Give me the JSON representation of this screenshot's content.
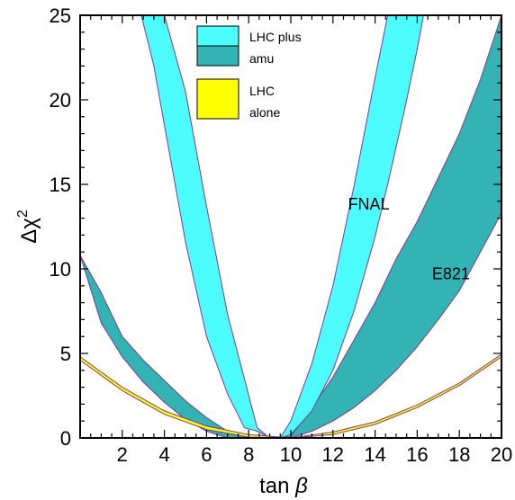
{
  "chart_data": {
    "type": "area",
    "xlabel_main": "tan",
    "xlabel_symbol": "β",
    "ylabel_main": "Δχ",
    "ylabel_sup": "2",
    "xlim": [
      0,
      20
    ],
    "ylim": [
      0,
      25
    ],
    "xticks": [
      2,
      4,
      6,
      8,
      10,
      12,
      14,
      16,
      18,
      20
    ],
    "yticks": [
      0,
      5,
      10,
      15,
      20,
      25
    ],
    "colors": {
      "cyan": "#4DFCFC",
      "teal": "#33B3B3",
      "yellow": "#FFFF00",
      "outline_purple": "#7A3E8A",
      "outline_dark": "#1a3a3a"
    },
    "legend": [
      {
        "label_line1": "LHC plus",
        "label_line2": "amu",
        "swatches": [
          "cyan",
          "teal"
        ]
      },
      {
        "label_line1": "LHC",
        "label_line2": "alone",
        "swatches": [
          "yellow"
        ]
      }
    ],
    "annotations": [
      {
        "text": "FNAL",
        "x": 13.7,
        "y": 13.5
      },
      {
        "text": "E821",
        "x": 17.6,
        "y": 9.4
      }
    ],
    "series": [
      {
        "name": "FNAL",
        "color": "cyan",
        "band": [
          {
            "x": 2.9,
            "lo": 25,
            "hi": 25
          },
          {
            "x": 3.5,
            "lo": 22.0,
            "hi": 25
          },
          {
            "x": 4.0,
            "lo": 18.5,
            "hi": 25
          },
          {
            "x": 5.0,
            "lo": 11.6,
            "hi": 20.5
          },
          {
            "x": 6.0,
            "lo": 6.0,
            "hi": 13.7
          },
          {
            "x": 7.0,
            "lo": 2.6,
            "hi": 7.3
          },
          {
            "x": 7.8,
            "lo": 0.6,
            "hi": 3.5
          },
          {
            "x": 8.4,
            "lo": 0.4,
            "hi": 0.6
          },
          {
            "x": 9.0,
            "lo": 0.0,
            "hi": 0.0
          },
          {
            "x": 9.5,
            "lo": 0.0,
            "hi": 0.0
          },
          {
            "x": 10.0,
            "lo": 0.2,
            "hi": 1.0
          },
          {
            "x": 11.0,
            "lo": 1.6,
            "hi": 4.4
          },
          {
            "x": 12.0,
            "lo": 4.0,
            "hi": 9.0
          },
          {
            "x": 13.0,
            "lo": 7.5,
            "hi": 14.9
          },
          {
            "x": 14.0,
            "lo": 11.9,
            "hi": 21.3
          },
          {
            "x": 14.6,
            "lo": 15.0,
            "hi": 25
          },
          {
            "x": 15.0,
            "lo": 17.2,
            "hi": 25
          },
          {
            "x": 15.5,
            "lo": 20.0,
            "hi": 25
          },
          {
            "x": 16.0,
            "lo": 23.0,
            "hi": 25
          },
          {
            "x": 16.3,
            "lo": 25,
            "hi": 25
          }
        ]
      },
      {
        "name": "E821",
        "color": "teal",
        "band": [
          {
            "x": 0.0,
            "lo": 10.8,
            "hi": 10.8
          },
          {
            "x": 1.0,
            "lo": 6.8,
            "hi": 8.6
          },
          {
            "x": 2.0,
            "lo": 4.8,
            "hi": 6.0
          },
          {
            "x": 3.0,
            "lo": 3.3,
            "hi": 4.6
          },
          {
            "x": 4.0,
            "lo": 2.1,
            "hi": 3.4
          },
          {
            "x": 5.0,
            "lo": 1.1,
            "hi": 2.2
          },
          {
            "x": 6.0,
            "lo": 0.4,
            "hi": 1.2
          },
          {
            "x": 7.0,
            "lo": 0.0,
            "hi": 0.4
          },
          {
            "x": 8.0,
            "lo": 0.0,
            "hi": 0.0
          },
          {
            "x": 9.0,
            "lo": 0.0,
            "hi": 0.0
          },
          {
            "x": 10.0,
            "lo": 0.0,
            "hi": 0.1
          },
          {
            "x": 11.0,
            "lo": 0.4,
            "hi": 1.8
          },
          {
            "x": 12.0,
            "lo": 1.0,
            "hi": 3.6
          },
          {
            "x": 13.0,
            "lo": 1.8,
            "hi": 5.8
          },
          {
            "x": 14.0,
            "lo": 2.8,
            "hi": 8.0
          },
          {
            "x": 15.0,
            "lo": 4.0,
            "hi": 10.6
          },
          {
            "x": 16.0,
            "lo": 5.4,
            "hi": 12.8
          },
          {
            "x": 17.0,
            "lo": 7.0,
            "hi": 15.4
          },
          {
            "x": 18.0,
            "lo": 8.7,
            "hi": 18.0
          },
          {
            "x": 19.0,
            "lo": 11.0,
            "hi": 21.2
          },
          {
            "x": 20.0,
            "lo": 13.3,
            "hi": 25
          }
        ]
      },
      {
        "name": "LHC alone",
        "color": "yellow",
        "band": [
          {
            "x": 0.0,
            "lo": 4.6,
            "hi": 4.8
          },
          {
            "x": 2.0,
            "lo": 2.8,
            "hi": 3.0
          },
          {
            "x": 4.0,
            "lo": 1.4,
            "hi": 1.6
          },
          {
            "x": 6.0,
            "lo": 0.5,
            "hi": 0.7
          },
          {
            "x": 8.0,
            "lo": 0.05,
            "hi": 0.2
          },
          {
            "x": 10.0,
            "lo": 0.0,
            "hi": 0.0
          },
          {
            "x": 12.0,
            "lo": 0.2,
            "hi": 0.35
          },
          {
            "x": 14.0,
            "lo": 0.8,
            "hi": 0.95
          },
          {
            "x": 16.0,
            "lo": 1.8,
            "hi": 1.95
          },
          {
            "x": 18.0,
            "lo": 3.1,
            "hi": 3.25
          },
          {
            "x": 20.0,
            "lo": 4.8,
            "hi": 4.95
          }
        ]
      }
    ]
  }
}
